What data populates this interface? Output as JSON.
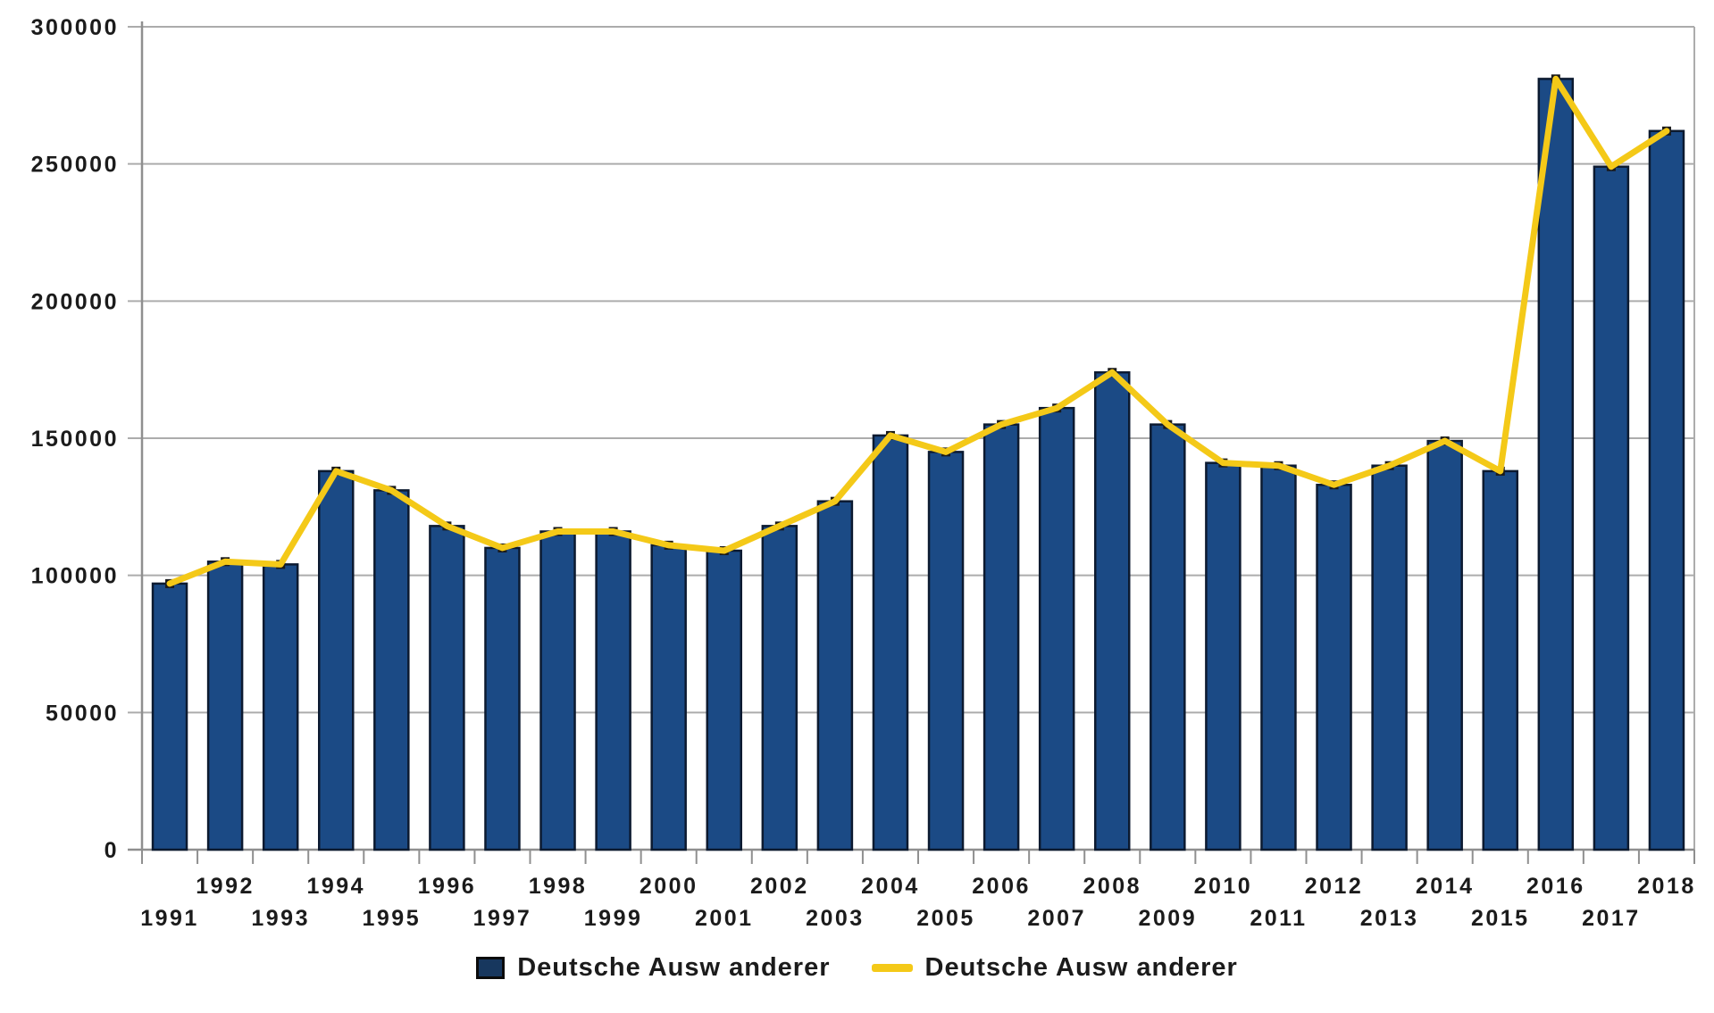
{
  "chart_data": {
    "type": "bar",
    "subtype": "bar-with-line-overlay",
    "title": "",
    "xlabel": "",
    "ylabel": "",
    "categories": [
      "1991",
      "1992",
      "1993",
      "1994",
      "1995",
      "1996",
      "1997",
      "1998",
      "1999",
      "2000",
      "2001",
      "2002",
      "2003",
      "2004",
      "2005",
      "2006",
      "2007",
      "2008",
      "2009",
      "2010",
      "2011",
      "2012",
      "2013",
      "2014",
      "2015",
      "2016",
      "2017",
      "2018"
    ],
    "series": [
      {
        "name": "Deutsche Ausw anderer",
        "type": "bar",
        "color": "#1B4A85",
        "values": [
          97000,
          105000,
          104000,
          138000,
          131000,
          118000,
          110000,
          116000,
          116000,
          111000,
          109000,
          118000,
          127000,
          151000,
          145000,
          155000,
          161000,
          174000,
          155000,
          141000,
          140000,
          133000,
          140000,
          149000,
          138000,
          281000,
          249000,
          262000
        ]
      },
      {
        "name": "Deutsche Ausw anderer",
        "type": "line",
        "color": "#F4C918",
        "values": [
          97000,
          105000,
          104000,
          138000,
          131000,
          118000,
          110000,
          116000,
          116000,
          111000,
          109000,
          118000,
          127000,
          151000,
          145000,
          155000,
          161000,
          174000,
          155000,
          141000,
          140000,
          133000,
          140000,
          149000,
          138000,
          281000,
          249000,
          262000
        ]
      }
    ],
    "ylim": [
      0,
      300000
    ],
    "yticks": [
      0,
      50000,
      100000,
      150000,
      200000,
      250000,
      300000
    ],
    "ytick_labels": [
      "0",
      "50000",
      "100000",
      "150000",
      "200000",
      "250000",
      "300000"
    ],
    "grid": true,
    "x_tick_label_layout": "staggered: even years on upper row, odd years on lower row",
    "legend_position": "bottom"
  },
  "legend": {
    "bar_label": "Deutsche Ausw anderer",
    "line_label": "Deutsche Ausw anderer"
  },
  "colors": {
    "bar_fill": "#1B4A85",
    "bar_border": "#0C1A30",
    "line": "#F4C918",
    "line_marker": "#1A1A1A",
    "grid": "#ACACAC",
    "axis": "#8F8F8F",
    "text": "#1B1B1B",
    "background": "#FFFFFF",
    "legend_square_fill": "#17375E"
  }
}
